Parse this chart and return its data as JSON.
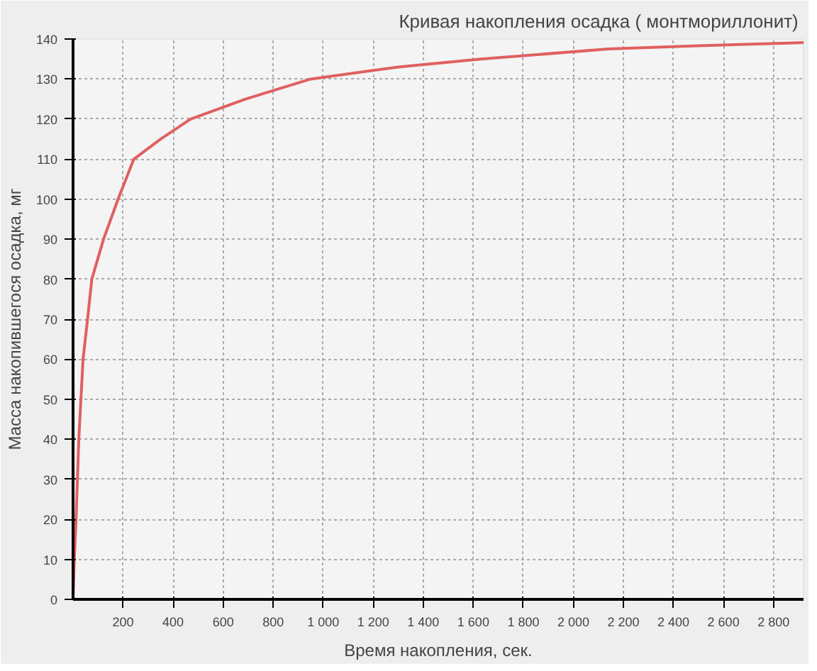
{
  "chart_data": {
    "type": "line",
    "title": "Кривая накопления осадка  ( монтмориллонит)",
    "xlabel": "Время накопления, сек.",
    "ylabel": "Масса накопившегося осадка, мг",
    "x": [
      0,
      5,
      12,
      23,
      40,
      58,
      75,
      122,
      180,
      243,
      350,
      470,
      690,
      950,
      1300,
      1630,
      2140,
      2500,
      2860,
      2920
    ],
    "series": [
      {
        "color": "#e06060",
        "values": [
          0,
          10,
          20,
          40,
          60,
          70,
          80,
          90,
          100,
          110,
          115,
          120,
          125,
          130,
          133,
          135,
          137.5,
          138.3,
          139,
          139.1
        ]
      }
    ],
    "xlim": [
      0,
      2920
    ],
    "ylim": [
      0,
      140
    ],
    "xticks": [
      {
        "value": 200,
        "label": "200"
      },
      {
        "value": 400,
        "label": "400"
      },
      {
        "value": 600,
        "label": "600"
      },
      {
        "value": 800,
        "label": "800"
      },
      {
        "value": 1000,
        "label": "1 000"
      },
      {
        "value": 1200,
        "label": "1 200"
      },
      {
        "value": 1400,
        "label": "1 400"
      },
      {
        "value": 1600,
        "label": "1 600"
      },
      {
        "value": 1800,
        "label": "1 800"
      },
      {
        "value": 2000,
        "label": "2 000"
      },
      {
        "value": 2200,
        "label": "2 200"
      },
      {
        "value": 2400,
        "label": "2 400"
      },
      {
        "value": 2600,
        "label": "2 600"
      },
      {
        "value": 2800,
        "label": "2 800"
      }
    ],
    "yticks": [
      0,
      10,
      20,
      30,
      40,
      50,
      60,
      70,
      80,
      90,
      100,
      110,
      120,
      130,
      140
    ],
    "grid": true,
    "line_style": "solid",
    "marker": "none"
  }
}
